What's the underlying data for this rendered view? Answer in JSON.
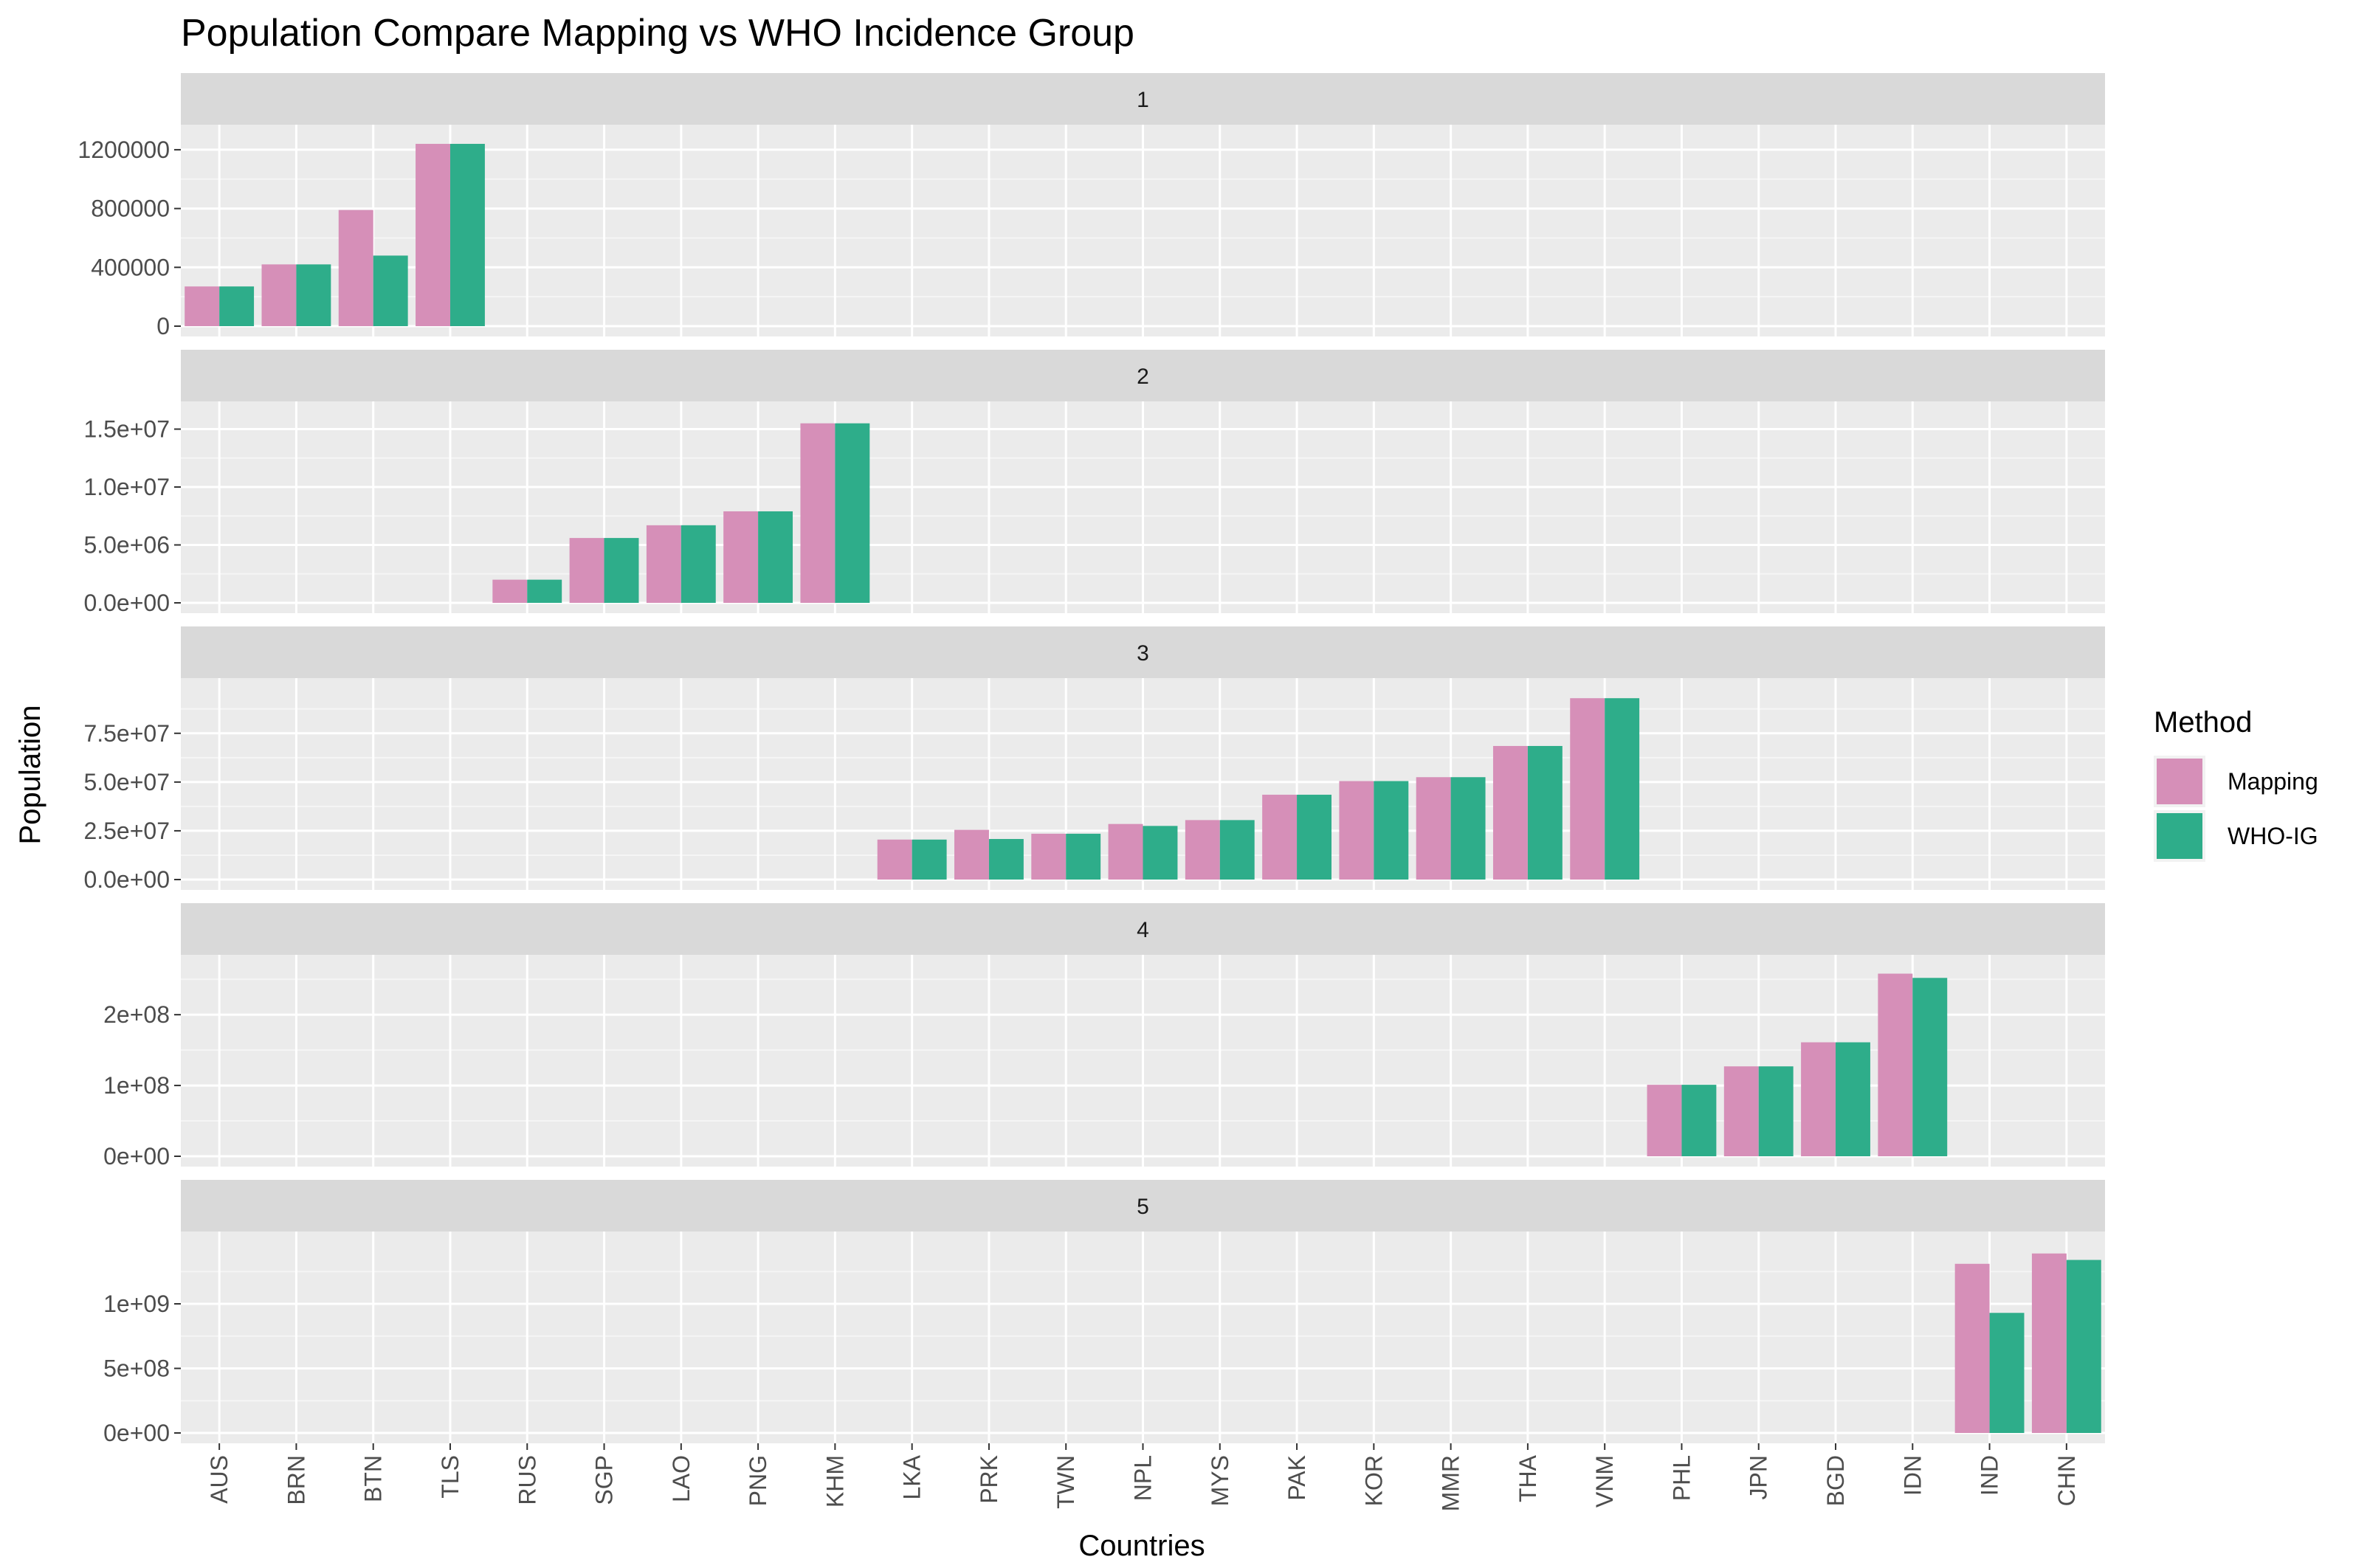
{
  "chart_data": {
    "type": "bar",
    "title": "Population Compare Mapping vs WHO Incidence Group",
    "xlabel": "Countries",
    "ylabel": "Population",
    "categories": [
      "AUS",
      "BRN",
      "BTN",
      "TLS",
      "RUS",
      "SGP",
      "LAO",
      "PNG",
      "KHM",
      "LKA",
      "PRK",
      "TWN",
      "NPL",
      "MYS",
      "PAK",
      "KOR",
      "MMR",
      "THA",
      "VNM",
      "PHL",
      "JPN",
      "BGD",
      "IDN",
      "IND",
      "CHN"
    ],
    "legend": {
      "title": "Method",
      "position": "right",
      "items": [
        {
          "label": "Mapping",
          "color": "#D68FB8"
        },
        {
          "label": "WHO-IG",
          "color": "#2EAD8A"
        }
      ]
    },
    "grid": true,
    "panels": [
      {
        "label": "1",
        "ylim": [
          0,
          1300000
        ],
        "yticks": [
          0,
          400000,
          800000,
          1200000
        ],
        "ytick_labels": [
          "0",
          "400000",
          "800000",
          "1200000"
        ],
        "series": [
          {
            "name": "Mapping",
            "values": {
              "AUS": 270000,
              "BRN": 420000,
              "BTN": 790000,
              "TLS": 1240000
            }
          },
          {
            "name": "WHO-IG",
            "values": {
              "AUS": 270000,
              "BRN": 420000,
              "BTN": 480000,
              "TLS": 1240000
            }
          }
        ]
      },
      {
        "label": "2",
        "ylim": [
          0,
          16500000
        ],
        "yticks": [
          0,
          5000000,
          10000000,
          15000000
        ],
        "ytick_labels": [
          "0.0e+00",
          "5.0e+06",
          "1.0e+07",
          "1.5e+07"
        ],
        "series": [
          {
            "name": "Mapping",
            "values": {
              "RUS": 2000000,
              "SGP": 5600000,
              "LAO": 6700000,
              "PNG": 7900000,
              "KHM": 15500000
            }
          },
          {
            "name": "WHO-IG",
            "values": {
              "RUS": 2000000,
              "SGP": 5600000,
              "LAO": 6700000,
              "PNG": 7900000,
              "KHM": 15500000
            }
          }
        ]
      },
      {
        "label": "3",
        "ylim": [
          0,
          98000000
        ],
        "yticks": [
          0,
          25000000,
          50000000,
          75000000
        ],
        "ytick_labels": [
          "0.0e+00",
          "2.5e+07",
          "5.0e+07",
          "7.5e+07"
        ],
        "series": [
          {
            "name": "Mapping",
            "values": {
              "LKA": 20500000,
              "PRK": 25500000,
              "TWN": 23500000,
              "NPL": 28500000,
              "MYS": 30500000,
              "PAK": 43500000,
              "KOR": 50500000,
              "MMR": 52500000,
              "THA": 68500000,
              "VNM": 93000000
            }
          },
          {
            "name": "WHO-IG",
            "values": {
              "LKA": 20500000,
              "PRK": 20800000,
              "TWN": 23500000,
              "NPL": 27500000,
              "MYS": 30500000,
              "PAK": 43500000,
              "KOR": 50500000,
              "MMR": 52500000,
              "THA": 68500000,
              "VNM": 93000000
            }
          }
        ]
      },
      {
        "label": "4",
        "ylim": [
          0,
          270000000
        ],
        "yticks": [
          0,
          100000000,
          200000000
        ],
        "ytick_labels": [
          "0e+00",
          "1e+08",
          "2e+08"
        ],
        "series": [
          {
            "name": "Mapping",
            "values": {
              "PHL": 101000000,
              "JPN": 127000000,
              "BGD": 161000000,
              "IDN": 258000000
            }
          },
          {
            "name": "WHO-IG",
            "values": {
              "PHL": 101000000,
              "JPN": 127000000,
              "BGD": 161000000,
              "IDN": 252000000
            }
          }
        ]
      },
      {
        "label": "5",
        "ylim": [
          0,
          1480000000
        ],
        "yticks": [
          0,
          500000000,
          1000000000
        ],
        "ytick_labels": [
          "0e+00",
          "5e+08",
          "1e+09"
        ],
        "series": [
          {
            "name": "Mapping",
            "values": {
              "IND": 1310000000,
              "CHN": 1390000000
            }
          },
          {
            "name": "WHO-IG",
            "values": {
              "IND": 930000000,
              "CHN": 1340000000
            }
          }
        ]
      }
    ]
  }
}
